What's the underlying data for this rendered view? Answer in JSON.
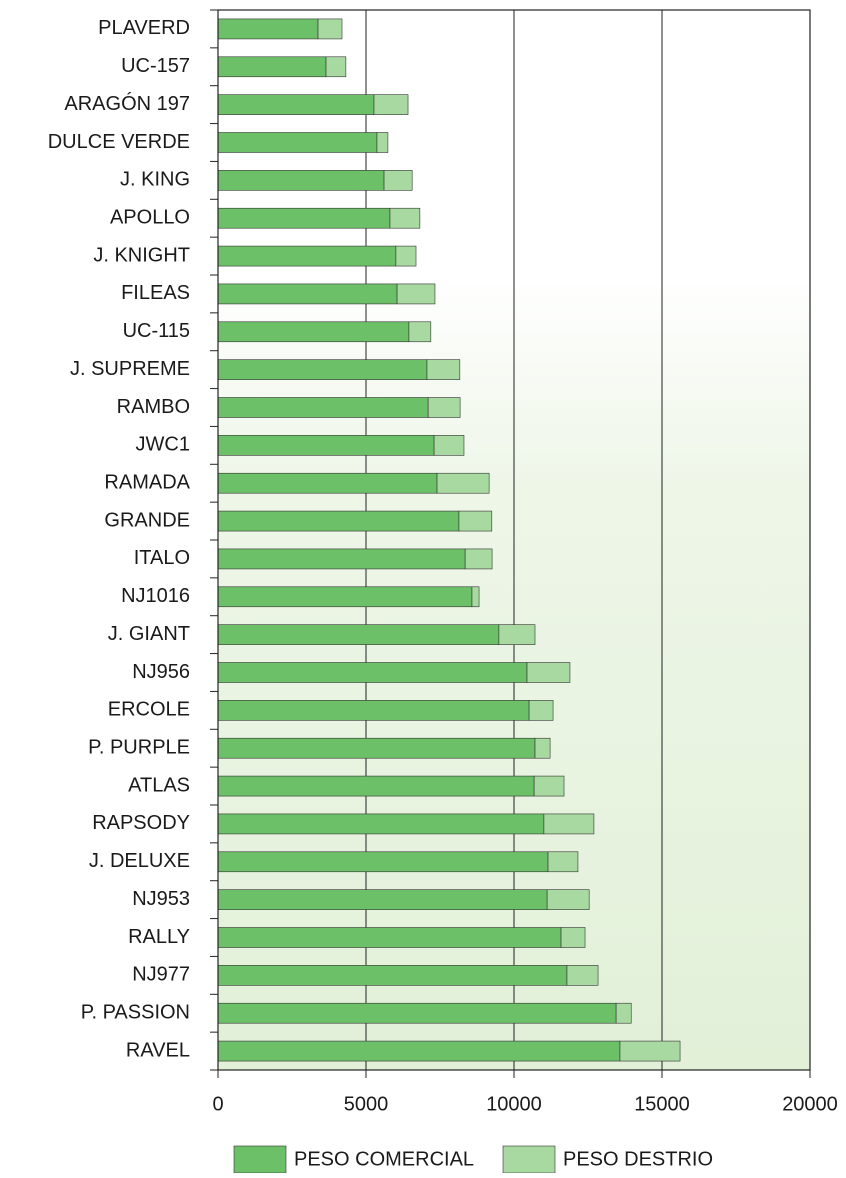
{
  "chart_data": {
    "type": "stacked-bar-horizontal",
    "categories": [
      "PLAVERD",
      "UC-157",
      "ARAGÓN 197",
      "DULCE VERDE",
      "J. KING",
      "APOLLO",
      "J. KNIGHT",
      "FILEAS",
      "UC-115",
      "J. SUPREME",
      "RAMBO",
      "JWC1",
      "RAMADA",
      "GRANDE",
      "ITALO",
      "NJ1016",
      "J. GIANT",
      "NJ956",
      "ERCOLE",
      "P. PURPLE",
      "ATLAS",
      "RAPSODY",
      "J. DELUXE",
      "NJ953",
      "RALLY",
      "NJ977",
      "P. PASSION",
      "RAVEL"
    ],
    "series": [
      {
        "name": "PESO COMERCIAL",
        "color": "#6cc067",
        "values": [
          3380,
          3650,
          5270,
          5370,
          5610,
          5810,
          6010,
          6050,
          6450,
          7060,
          7100,
          7300,
          7400,
          8140,
          8350,
          8580,
          9490,
          10440,
          10510,
          10710,
          10680,
          11010,
          11150,
          11120,
          11590,
          11790,
          13450,
          13580
        ]
      },
      {
        "name": "PESO DESTRIO",
        "color": "#a8d9a0",
        "values": [
          810,
          670,
          1150,
          370,
          950,
          1010,
          680,
          1280,
          740,
          1110,
          1080,
          1010,
          1760,
          1110,
          910,
          240,
          1220,
          1450,
          810,
          510,
          1010,
          1690,
          1010,
          1420,
          810,
          1050,
          510,
          2030
        ]
      }
    ],
    "xlim": [
      0,
      20000
    ],
    "xticks": [
      0,
      5000,
      10000,
      15000,
      20000
    ],
    "grid": true,
    "legend": "bottom"
  }
}
